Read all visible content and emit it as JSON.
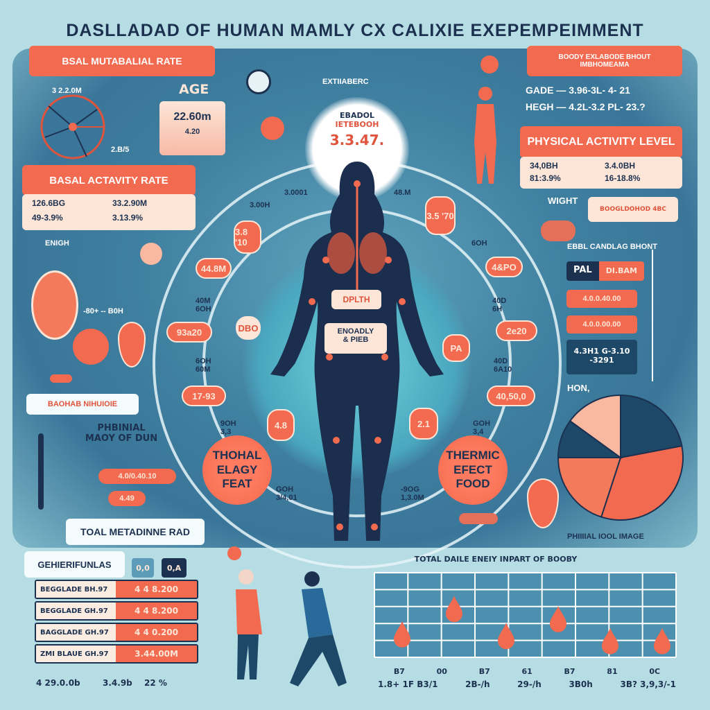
{
  "title": "DASLLADAD OF HUMAN MAMLY CX CALIXIE EXEPEMPEIMMENT",
  "colors": {
    "background": "#b6dde3",
    "panel": "#3f7f9f",
    "accent": "#f26a4f",
    "navy": "#1c3150",
    "cream": "#fde6d8"
  },
  "left": {
    "bmr_header": "BSAL MUTABALIAL RATE",
    "gauge_labels": [
      "3 2.2.0M",
      "2.B/5"
    ],
    "age_label": "AGE",
    "age_values": [
      "22.60m",
      "4.20"
    ],
    "bar_header": "BASAL ACTAVITY RATE",
    "bar_values": [
      "126.6BG",
      "33.2.90M",
      "49-3.9%",
      "3.13.9%"
    ],
    "enigh_label": "ENIGH",
    "small_label": "-80+ -- B0H",
    "nutrition_box": "BAOHAB NIHUIOIE",
    "phbinial_title": "PHBINIAL MAOY OF DUN",
    "phbinial_pills": [
      "4.0/0.40.10",
      "4.49"
    ],
    "total_box": "TOAL METADINNE RAD",
    "generic_box": "GEHIERIFUNLAS",
    "toggles": [
      "0,0",
      "0,A"
    ],
    "table_rows": [
      {
        "label": "BEGGLADE BH.97",
        "value": "4 4 8.200"
      },
      {
        "label": "BEGGLADE GH.97",
        "value": "4 4 8.200"
      },
      {
        "label": "BAGGLADE GH.97",
        "value": "4 4 0.200"
      },
      {
        "label": "ZMI BLAUE GH.97",
        "value": "3.44.00M"
      }
    ],
    "bottom_labels": [
      "4 29.0.0b",
      "3.4.9b",
      "22 %"
    ]
  },
  "center": {
    "glow_lines": [
      "EBADOL",
      "IETEBOOH"
    ],
    "glow_value": "3.3.47.",
    "extra_label": "EXTIIABERC",
    "organ_label": "DPLTH",
    "body_label": [
      "ENOADLY",
      "& PIEB"
    ],
    "left_pills": [
      "3.8 '10",
      "44.8M",
      "93a20",
      "17-93",
      "DBO",
      "4.8"
    ],
    "right_pills": [
      "3.5 '70",
      "4&PO",
      "2e20",
      "PA",
      "40,50,0",
      "2.1"
    ],
    "ring_labels": [
      "3.0001",
      "3.00H",
      "48.M",
      "6OH",
      "40M 6OH",
      "40D 6H",
      "6OH 60M",
      "40D 6A10",
      "9OH 3,3",
      "GOH 3,4"
    ],
    "left_circle": "THOHAL ELAGY FEAT",
    "right_circle": "THERMIC EFECT FOOD",
    "bottom_ring_labels": [
      "GOH 3/4,01",
      "-9OG 1,3.0M"
    ]
  },
  "right": {
    "header": [
      "BOODY EXLABODE BHOUT",
      "IMBHOMEAMA"
    ],
    "stats": [
      {
        "label": "GADE",
        "value": "3.96-3L- 4- 21"
      },
      {
        "label": "HEGH",
        "value": "4.2L-3.2 PL- 23.?"
      }
    ],
    "pal_header": "PHYSICAL ACTIVITY LEVEL",
    "pal_values": [
      "34,0BH",
      "3.4.0BH",
      "81:3.9%",
      "16-18.8%"
    ],
    "wight_label": "WIGHT",
    "wight_box": "BOOGLDOHOD 4BC",
    "candlag_label": "EBBL CANDLAG BHONT",
    "pal_tag": "PAL",
    "pal_tag_value": "DI.BAM",
    "pills": [
      "4.0.0.40.00",
      "4.0.0.00.00"
    ],
    "navy_box": [
      "4.3H1 G-3.10",
      "-3291"
    ],
    "pie_label": "HON,",
    "pie_caption": "PHIIIIAL IOOL IMAGE",
    "pie_slices": [
      {
        "share": 0.22,
        "color": "#1d4868"
      },
      {
        "share": 0.33,
        "color": "#f26a4f"
      },
      {
        "share": 0.2,
        "color": "#f47a5c"
      },
      {
        "share": 0.1,
        "color": "#1d4868"
      },
      {
        "share": 0.15,
        "color": "#f9b8a0"
      }
    ]
  },
  "chart_data": {
    "type": "scatter",
    "title": "TOTAL DAILE ENEIY INPART OF BOOBY",
    "x_top_labels": [
      "B7",
      "00",
      "B7",
      "61",
      "B7",
      "81",
      "0C"
    ],
    "x_bottom_labels": [
      "1.8+ 1F B3/1",
      "2B-/h",
      "29-/h",
      "3B0h",
      "3B? 3,9,3/-1"
    ],
    "y_grid_rows": 5,
    "points": [
      1.4,
      2.9,
      1.3,
      2.3,
      1.0,
      1.0
    ],
    "ylim": [
      0,
      5
    ]
  }
}
